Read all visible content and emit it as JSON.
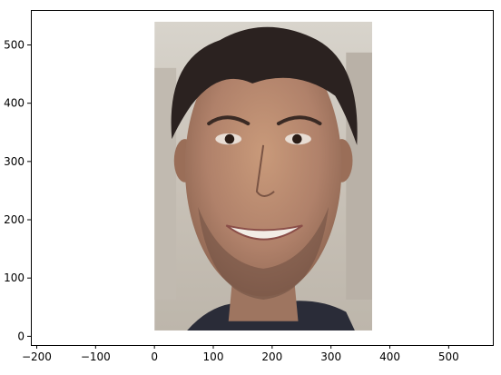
{
  "chart_data": {
    "type": "image",
    "image_description": "face-photo-icon",
    "image_extent": [
      0,
      370,
      10,
      540
    ],
    "xlim": [
      -210,
      575
    ],
    "ylim": [
      -15,
      560
    ],
    "xticks": [
      -200,
      -100,
      0,
      100,
      200,
      300,
      400,
      500
    ],
    "yticks": [
      0,
      100,
      200,
      300,
      400,
      500
    ],
    "xtick_labels": [
      "−200",
      "−100",
      "0",
      "100",
      "200",
      "300",
      "400",
      "500"
    ],
    "ytick_labels": [
      "0",
      "100",
      "200",
      "300",
      "400",
      "500"
    ],
    "grid": false,
    "colors": {
      "axes": "#000000",
      "background": "#ffffff"
    }
  }
}
